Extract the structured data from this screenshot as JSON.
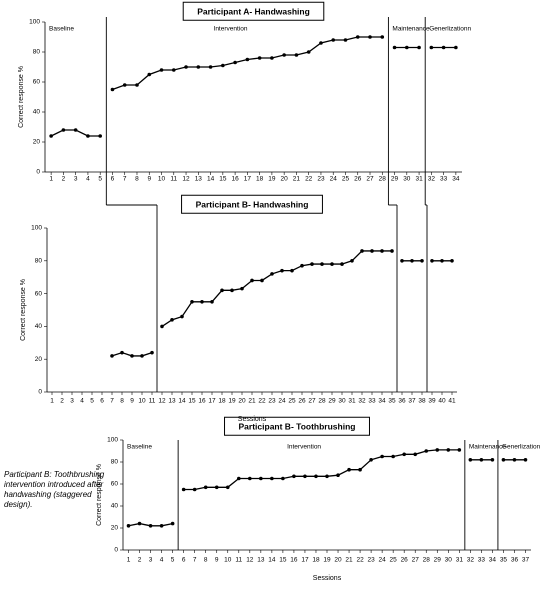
{
  "note": "Participant B: Toothbrushing intervention introduced after handwashing (staggered design).",
  "chart_data": [
    {
      "type": "line",
      "title": "Participant A- Handwashing",
      "y_label": "Correct response %",
      "xlim": [
        0.5,
        34.5
      ],
      "ylim": [
        0,
        100
      ],
      "xticks": [
        1,
        2,
        3,
        4,
        5,
        6,
        7,
        8,
        9,
        10,
        11,
        12,
        13,
        14,
        15,
        16,
        17,
        18,
        19,
        20,
        21,
        22,
        23,
        24,
        25,
        26,
        27,
        28,
        29,
        30,
        31,
        32,
        33,
        34
      ],
      "yticks": [
        0,
        20,
        40,
        60,
        80,
        100
      ],
      "phase_lines": [
        5.5,
        28.5,
        31.5
      ],
      "annotations": [
        "Baseline",
        "Intervention",
        "Maintenance",
        "Generlizationn"
      ],
      "color": "#000000",
      "series": [
        {
          "x": [
            1,
            2,
            3,
            4,
            5
          ],
          "values": [
            24,
            28,
            28,
            24,
            24
          ]
        },
        {
          "x": [
            6,
            7,
            8,
            9,
            10,
            11,
            12,
            13,
            14,
            15,
            16,
            17,
            18,
            19,
            20,
            21,
            22,
            23,
            24,
            25,
            26,
            27,
            28
          ],
          "values": [
            55,
            58,
            58,
            65,
            68,
            68,
            70,
            70,
            70,
            71,
            73,
            75,
            76,
            76,
            78,
            78,
            80,
            86,
            88,
            88,
            90,
            90,
            90
          ]
        },
        {
          "x": [
            29,
            30,
            31
          ],
          "values": [
            83,
            83,
            83
          ]
        },
        {
          "x": [
            32,
            33,
            34
          ],
          "values": [
            83,
            83,
            83
          ]
        }
      ]
    },
    {
      "type": "line",
      "title": "Participant B- Handwashing",
      "y_label": "Correct response  %",
      "x_label": "Sessions",
      "xlim": [
        0.5,
        41.5
      ],
      "ylim": [
        0,
        100
      ],
      "xticks": [
        1,
        2,
        3,
        4,
        5,
        6,
        7,
        8,
        9,
        10,
        11,
        12,
        13,
        14,
        15,
        16,
        17,
        18,
        19,
        20,
        21,
        22,
        23,
        24,
        25,
        26,
        27,
        28,
        29,
        30,
        31,
        32,
        33,
        34,
        35,
        36,
        37,
        38,
        39,
        40,
        41
      ],
      "yticks": [
        0,
        20,
        40,
        60,
        80,
        100
      ],
      "phase_lines": [
        11.5,
        35.5,
        38.5
      ],
      "color": "#000000",
      "series": [
        {
          "x": [
            7,
            8,
            9,
            10,
            11
          ],
          "values": [
            22,
            24,
            22,
            22,
            24
          ]
        },
        {
          "x": [
            12,
            13,
            14,
            15,
            16,
            17,
            18,
            19,
            20,
            21,
            22,
            23,
            24,
            25,
            26,
            27,
            28,
            29,
            30,
            31,
            32,
            33,
            34,
            35
          ],
          "values": [
            40,
            44,
            46,
            55,
            55,
            55,
            62,
            62,
            63,
            68,
            68,
            72,
            74,
            74,
            77,
            78,
            78,
            78,
            78,
            80,
            86,
            86,
            86,
            86
          ]
        },
        {
          "x": [
            36,
            37,
            38
          ],
          "values": [
            80,
            80,
            80
          ]
        },
        {
          "x": [
            39,
            40,
            41
          ],
          "values": [
            80,
            80,
            80
          ]
        }
      ]
    },
    {
      "type": "line",
      "title": "Participant B- Toothbrushing",
      "y_label": "Correct response  %",
      "x_label": "Sessions",
      "xlim": [
        0.5,
        37.5
      ],
      "ylim": [
        0,
        100
      ],
      "xticks": [
        1,
        2,
        3,
        4,
        5,
        6,
        7,
        8,
        9,
        10,
        11,
        12,
        13,
        14,
        15,
        16,
        17,
        18,
        19,
        20,
        21,
        22,
        23,
        24,
        25,
        26,
        27,
        28,
        29,
        30,
        31,
        32,
        33,
        34,
        35,
        36,
        37
      ],
      "yticks": [
        0,
        20,
        40,
        60,
        80,
        100
      ],
      "phase_lines": [
        5.5,
        31.5,
        34.5
      ],
      "annotations": [
        "Baseline",
        "Intervention",
        "Maintenance",
        "Generlization"
      ],
      "color": "#000000",
      "series": [
        {
          "x": [
            1,
            2,
            3,
            4,
            5
          ],
          "values": [
            22,
            24,
            22,
            22,
            24
          ]
        },
        {
          "x": [
            6,
            7,
            8,
            9,
            10,
            11,
            12,
            13,
            14,
            15,
            16,
            17,
            18,
            19,
            20,
            21,
            22,
            23,
            24,
            25,
            26,
            27,
            28,
            29,
            30,
            31
          ],
          "values": [
            55,
            55,
            57,
            57,
            57,
            65,
            65,
            65,
            65,
            65,
            67,
            67,
            67,
            67,
            68,
            73,
            73,
            82,
            85,
            85,
            87,
            87,
            90,
            91,
            91,
            91
          ]
        },
        {
          "x": [
            32,
            33,
            34
          ],
          "values": [
            82,
            82,
            82
          ]
        },
        {
          "x": [
            35,
            36,
            37
          ],
          "values": [
            82,
            82,
            82
          ]
        }
      ]
    }
  ]
}
